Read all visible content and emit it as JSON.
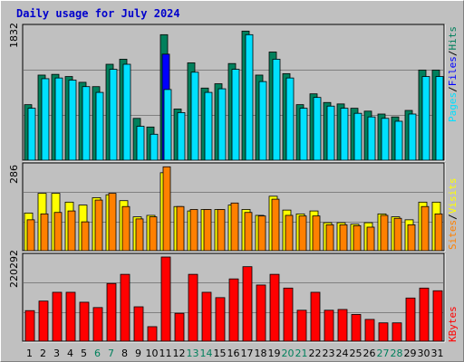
{
  "title": "Daily usage for July 2024",
  "colors": {
    "hits": "#00805c",
    "files": "#0000ff",
    "pages": "#00e0ff",
    "visits": "#ffff00",
    "sites": "#ff8000",
    "kbytes": "#ff0000",
    "panel_bg": "#c0c0c0",
    "weekend_label": "#00805c",
    "weekday_label": "#000000"
  },
  "legend": {
    "top": {
      "pages": "Pages",
      "files": "Files",
      "hits": "Hits",
      "sep": "/"
    },
    "middle": {
      "sites": "Sites",
      "visits": "Visits",
      "sep": "/"
    },
    "bottom": {
      "kbytes": "KBytes"
    }
  },
  "chart_data": [
    {
      "type": "bar",
      "title": "Daily usage for July 2024",
      "ymax_label": "1832",
      "ylim": [
        0,
        1832
      ],
      "categories": [
        "1",
        "2",
        "3",
        "4",
        "5",
        "6",
        "7",
        "8",
        "9",
        "10",
        "11",
        "12",
        "13",
        "14",
        "15",
        "16",
        "17",
        "18",
        "19",
        "20",
        "21",
        "22",
        "23",
        "24",
        "25",
        "26",
        "27",
        "28",
        "29",
        "30",
        "31"
      ],
      "weekend_days": [
        "6",
        "7",
        "13",
        "14",
        "20",
        "21",
        "27",
        "28"
      ],
      "series": [
        {
          "name": "Hits",
          "values": [
            770,
            1180,
            1190,
            1160,
            1080,
            1020,
            1330,
            1400,
            580,
            460,
            1740,
            710,
            1350,
            1000,
            1060,
            1340,
            1790,
            1180,
            1500,
            1200,
            770,
            920,
            800,
            780,
            720,
            680,
            640,
            600,
            690,
            1250,
            1250
          ]
        },
        {
          "name": "Files",
          "values": [
            0,
            0,
            0,
            0,
            0,
            0,
            0,
            0,
            0,
            0,
            1470,
            0,
            0,
            0,
            0,
            0,
            0,
            0,
            0,
            0,
            0,
            0,
            0,
            0,
            0,
            0,
            0,
            0,
            0,
            0,
            0
          ]
        },
        {
          "name": "Pages",
          "values": [
            720,
            1130,
            1140,
            1110,
            1020,
            940,
            1260,
            1330,
            470,
            360,
            980,
            660,
            1220,
            940,
            990,
            1260,
            1740,
            1090,
            1400,
            1140,
            720,
            870,
            750,
            720,
            650,
            600,
            580,
            540,
            640,
            1160,
            1160
          ]
        }
      ]
    },
    {
      "type": "bar",
      "ymax_label": "286",
      "ylim": [
        0,
        286
      ],
      "categories": [
        "1",
        "2",
        "3",
        "4",
        "5",
        "6",
        "7",
        "8",
        "9",
        "10",
        "11",
        "12",
        "13",
        "14",
        "15",
        "16",
        "17",
        "18",
        "19",
        "20",
        "21",
        "22",
        "23",
        "24",
        "25",
        "26",
        "27",
        "28",
        "29",
        "30",
        "31"
      ],
      "series": [
        {
          "name": "Visits",
          "values": [
            128,
            195,
            195,
            165,
            155,
            180,
            190,
            170,
            115,
            120,
            265,
            150,
            135,
            140,
            140,
            155,
            140,
            120,
            185,
            138,
            125,
            135,
            95,
            95,
            90,
            95,
            125,
            115,
            105,
            165,
            165
          ]
        },
        {
          "name": "Sites",
          "values": [
            105,
            125,
            130,
            135,
            98,
            172,
            195,
            150,
            108,
            115,
            285,
            150,
            140,
            140,
            140,
            162,
            130,
            118,
            175,
            120,
            118,
            118,
            88,
            88,
            85,
            80,
            120,
            110,
            88,
            150,
            125
          ]
        }
      ]
    },
    {
      "type": "bar",
      "ymax_label": "220292",
      "ylim": [
        0,
        220292
      ],
      "categories": [
        "1",
        "2",
        "3",
        "4",
        "5",
        "6",
        "7",
        "8",
        "9",
        "10",
        "11",
        "12",
        "13",
        "14",
        "15",
        "16",
        "17",
        "18",
        "19",
        "20",
        "21",
        "22",
        "23",
        "24",
        "25",
        "26",
        "27",
        "28",
        "29",
        "30",
        "31"
      ],
      "series": [
        {
          "name": "KBytes",
          "values": [
            80000,
            105000,
            128000,
            128000,
            102000,
            88000,
            151000,
            175000,
            90000,
            38000,
            220292,
            73000,
            175000,
            128000,
            114000,
            163000,
            195000,
            147000,
            175000,
            139000,
            81000,
            128000,
            81000,
            83000,
            70000,
            57000,
            48000,
            48000,
            113000,
            139000,
            132000
          ]
        }
      ]
    }
  ]
}
